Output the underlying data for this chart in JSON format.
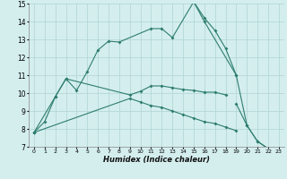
{
  "color": "#2e7d6e",
  "bg_color": "#d4eeee",
  "grid_color": "#b0d4d4",
  "xlabel": "Humidex (Indice chaleur)",
  "ylim": [
    7,
    15
  ],
  "xlim": [
    -0.5,
    23.5
  ],
  "line1_x": [
    0,
    1,
    2,
    3,
    4,
    5,
    6,
    7,
    8,
    11,
    12,
    13,
    15,
    16,
    17,
    18,
    19
  ],
  "line1_y": [
    7.8,
    8.4,
    9.8,
    10.8,
    10.15,
    11.2,
    12.4,
    12.9,
    12.85,
    13.6,
    13.6,
    13.1,
    15.1,
    14.2,
    13.5,
    12.5,
    11.0
  ],
  "line2_x": [
    15,
    16,
    19,
    20,
    21,
    22
  ],
  "line2_y": [
    15.1,
    14.0,
    11.0,
    8.2,
    7.3,
    6.9
  ],
  "line3_x": [
    0,
    2,
    3,
    9,
    10,
    11,
    12,
    13,
    14,
    15,
    16,
    17,
    18
  ],
  "line3_y": [
    7.8,
    9.8,
    10.8,
    9.9,
    10.1,
    10.4,
    10.4,
    10.3,
    10.2,
    10.15,
    10.05,
    10.05,
    9.9
  ],
  "line4_x": [
    0,
    9,
    10,
    11,
    12,
    13,
    14,
    15,
    16,
    17,
    18,
    19
  ],
  "line4_y": [
    7.8,
    9.7,
    9.5,
    9.3,
    9.2,
    9.0,
    8.8,
    8.6,
    8.4,
    8.3,
    8.1,
    7.9
  ],
  "line5_x": [
    19,
    20,
    21,
    22
  ],
  "line5_y": [
    9.4,
    8.2,
    7.3,
    6.9
  ]
}
